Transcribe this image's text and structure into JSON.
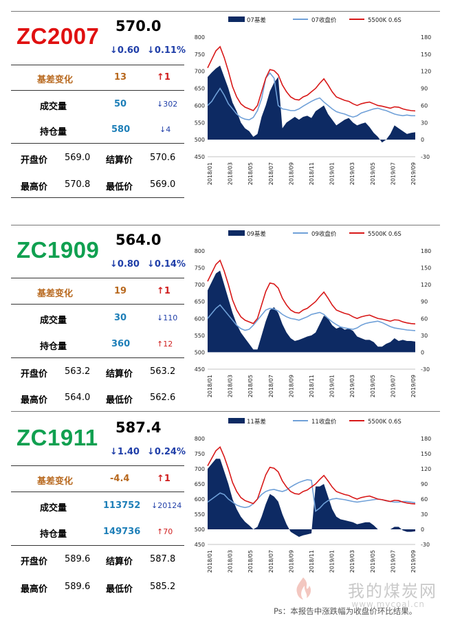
{
  "panels": [
    {
      "code": "ZC2007",
      "code_color": "#e01010",
      "price": "570.0",
      "change": "↓0.60",
      "change_pct": "↓0.11%",
      "basis_change": {
        "label": "基差变化",
        "value": "13",
        "arrow": "↑1"
      },
      "volume": {
        "label": "成交量",
        "value": "50",
        "arrow": "↓302",
        "dir": "down"
      },
      "open_interest": {
        "label": "持仓量",
        "value": "580",
        "arrow": "↓4",
        "dir": "down"
      },
      "open": {
        "label": "开盘价",
        "value": "569.0"
      },
      "settle": {
        "label": "结算价",
        "value": "570.6"
      },
      "high": {
        "label": "最高价",
        "value": "570.8"
      },
      "low": {
        "label": "最低价",
        "value": "569.0"
      }
    },
    {
      "code": "ZC1909",
      "code_color": "#10a050",
      "price": "564.0",
      "change": "↓0.80",
      "change_pct": "↓0.14%",
      "basis_change": {
        "label": "基差变化",
        "value": "19",
        "arrow": "↑1"
      },
      "volume": {
        "label": "成交量",
        "value": "30",
        "arrow": "↓110",
        "dir": "down"
      },
      "open_interest": {
        "label": "持仓量",
        "value": "360",
        "arrow": "↑12",
        "dir": "up"
      },
      "open": {
        "label": "开盘价",
        "value": "563.2"
      },
      "settle": {
        "label": "结算价",
        "value": "563.2"
      },
      "high": {
        "label": "最高价",
        "value": "564.0"
      },
      "low": {
        "label": "最低价",
        "value": "562.6"
      }
    },
    {
      "code": "ZC1911",
      "code_color": "#10a050",
      "price": "587.4",
      "change": "↓1.40",
      "change_pct": "↓0.24%",
      "basis_change": {
        "label": "基差变化",
        "value": "-4.4",
        "arrow": "↑1"
      },
      "volume": {
        "label": "成交量",
        "value": "113752",
        "arrow": "↓20124",
        "dir": "down"
      },
      "open_interest": {
        "label": "持仓量",
        "value": "149736",
        "arrow": "↑70",
        "dir": "up"
      },
      "open": {
        "label": "开盘价",
        "value": "589.6"
      },
      "settle": {
        "label": "结算价",
        "value": "587.8"
      },
      "high": {
        "label": "最高价",
        "value": "589.6"
      },
      "low": {
        "label": "最低价",
        "value": "585.2"
      }
    }
  ],
  "chart_data": [
    {
      "type": "area",
      "legend": [
        "07基差",
        "07收盘价",
        "5500K 0.6S"
      ],
      "legend_position": "top",
      "colors": {
        "basis": "#0d2a63",
        "close": "#6fa0d8",
        "spot": "#d81818"
      },
      "x_ticks": [
        "2018/01",
        "2018/03",
        "2018/05",
        "2018/07",
        "2018/09",
        "2018/11",
        "2019/01",
        "2019/03",
        "2019/05",
        "2019/07",
        "2019/09"
      ],
      "y_left": {
        "min": 450,
        "max": 800,
        "ticks": [
          450,
          500,
          550,
          600,
          650,
          700,
          750,
          800
        ]
      },
      "y_right": {
        "min": -30,
        "max": 180,
        "ticks": [
          -30,
          0,
          30,
          60,
          90,
          120,
          150,
          180
        ]
      },
      "series": [
        {
          "name": "5500K 0.6S",
          "axis": "left",
          "values": [
            710,
            735,
            760,
            772,
            740,
            700,
            655,
            625,
            605,
            595,
            590,
            585,
            600,
            640,
            680,
            705,
            702,
            690,
            660,
            640,
            625,
            618,
            616,
            625,
            630,
            640,
            650,
            665,
            678,
            660,
            640,
            625,
            620,
            615,
            612,
            605,
            600,
            605,
            608,
            610,
            605,
            600,
            598,
            595,
            592,
            596,
            595,
            590,
            587,
            585,
            584
          ]
        },
        {
          "name": "07收盘价",
          "axis": "left",
          "values": [
            600,
            612,
            632,
            650,
            630,
            605,
            590,
            575,
            565,
            560,
            558,
            565,
            585,
            620,
            680,
            695,
            680,
            600,
            590,
            588,
            585,
            585,
            590,
            598,
            605,
            612,
            618,
            622,
            610,
            600,
            590,
            582,
            578,
            575,
            570,
            566,
            570,
            578,
            582,
            586,
            590,
            592,
            588,
            585,
            580,
            575,
            572,
            570,
            572,
            570,
            570
          ]
        },
        {
          "name": "07基差",
          "axis": "right",
          "values": [
            110,
            118,
            125,
            130,
            110,
            90,
            65,
            50,
            30,
            20,
            15,
            5,
            10,
            40,
            60,
            85,
            100,
            110,
            20,
            30,
            35,
            40,
            35,
            40,
            42,
            38,
            50,
            55,
            60,
            45,
            35,
            25,
            30,
            35,
            38,
            30,
            25,
            28,
            30,
            22,
            12,
            5,
            -5,
            0,
            10,
            25,
            20,
            15,
            10,
            12,
            13
          ]
        }
      ]
    },
    {
      "type": "area",
      "legend": [
        "09基差",
        "09收盘价",
        "5500K 0.6S"
      ],
      "legend_position": "top",
      "colors": {
        "basis": "#0d2a63",
        "close": "#6fa0d8",
        "spot": "#d81818"
      },
      "x_ticks": [
        "2018/01",
        "2018/03",
        "2018/05",
        "2018/07",
        "2018/09",
        "2018/11",
        "2019/01",
        "2019/03",
        "2019/05",
        "2019/07",
        "2019/09"
      ],
      "y_left": {
        "min": 450,
        "max": 800,
        "ticks": [
          450,
          500,
          550,
          600,
          650,
          700,
          750,
          800
        ]
      },
      "y_right": {
        "min": -30,
        "max": 180,
        "ticks": [
          -30,
          0,
          30,
          60,
          90,
          120,
          150,
          180
        ]
      },
      "series": [
        {
          "name": "5500K 0.6S",
          "axis": "left",
          "values": [
            710,
            735,
            760,
            772,
            740,
            700,
            655,
            625,
            605,
            595,
            590,
            585,
            600,
            640,
            680,
            705,
            702,
            690,
            660,
            640,
            625,
            618,
            616,
            625,
            630,
            640,
            650,
            665,
            678,
            660,
            640,
            625,
            620,
            615,
            612,
            605,
            600,
            605,
            608,
            610,
            605,
            600,
            598,
            595,
            592,
            596,
            595,
            590,
            587,
            585,
            584
          ]
        },
        {
          "name": "09收盘价",
          "axis": "left",
          "values": [
            600,
            615,
            630,
            640,
            625,
            610,
            595,
            580,
            570,
            565,
            568,
            580,
            595,
            610,
            625,
            630,
            628,
            622,
            612,
            605,
            600,
            598,
            595,
            600,
            605,
            612,
            615,
            618,
            612,
            600,
            590,
            582,
            575,
            572,
            570,
            568,
            572,
            580,
            585,
            588,
            590,
            592,
            588,
            582,
            576,
            572,
            570,
            568,
            566,
            565,
            564
          ]
        },
        {
          "name": "09基差",
          "axis": "right",
          "values": [
            110,
            125,
            140,
            145,
            120,
            95,
            70,
            50,
            35,
            25,
            15,
            5,
            5,
            30,
            55,
            75,
            80,
            70,
            50,
            35,
            25,
            20,
            22,
            25,
            28,
            30,
            35,
            50,
            65,
            60,
            48,
            42,
            45,
            40,
            42,
            38,
            28,
            25,
            22,
            22,
            18,
            10,
            10,
            15,
            18,
            25,
            20,
            22,
            20,
            20,
            19
          ]
        }
      ]
    },
    {
      "type": "area",
      "legend": [
        "11基差",
        "11收盘价",
        "5500K 0.6S"
      ],
      "legend_position": "top",
      "colors": {
        "basis": "#0d2a63",
        "close": "#6fa0d8",
        "spot": "#d81818"
      },
      "x_ticks": [
        "2018/01",
        "2018/03",
        "2018/05",
        "2018/07",
        "2018/09",
        "2018/11",
        "2019/01",
        "2019/03",
        "2019/05",
        "2019/07",
        "2019/09"
      ],
      "y_left": {
        "min": 450,
        "max": 800,
        "ticks": [
          450,
          500,
          550,
          600,
          650,
          700,
          750,
          800
        ]
      },
      "y_right": {
        "min": -30,
        "max": 180,
        "ticks": [
          -30,
          0,
          30,
          60,
          90,
          120,
          150,
          180
        ]
      },
      "series": [
        {
          "name": "5500K 0.6S",
          "axis": "left",
          "values": [
            710,
            735,
            760,
            772,
            740,
            700,
            655,
            625,
            605,
            595,
            590,
            585,
            600,
            640,
            680,
            705,
            702,
            690,
            660,
            640,
            625,
            618,
            616,
            625,
            630,
            640,
            650,
            665,
            678,
            660,
            640,
            625,
            620,
            615,
            612,
            605,
            600,
            605,
            608,
            610,
            605,
            600,
            598,
            595,
            592,
            596,
            595,
            590,
            587,
            585,
            584
          ]
        },
        {
          "name": "11收盘价",
          "axis": "left",
          "values": [
            590,
            600,
            610,
            620,
            615,
            600,
            590,
            580,
            575,
            572,
            575,
            585,
            600,
            615,
            625,
            630,
            632,
            628,
            625,
            630,
            640,
            648,
            655,
            660,
            664,
            662,
            560,
            570,
            585,
            595,
            600,
            602,
            600,
            598,
            595,
            592,
            590,
            592,
            594,
            596,
            598,
            600,
            598,
            594,
            592,
            590,
            590,
            592,
            592,
            590,
            588
          ]
        },
        {
          "name": "11基差",
          "axis": "right",
          "values": [
            120,
            130,
            140,
            140,
            115,
            90,
            60,
            40,
            25,
            15,
            8,
            0,
            5,
            25,
            50,
            70,
            65,
            55,
            30,
            10,
            -5,
            -10,
            -15,
            -12,
            -10,
            -8,
            85,
            85,
            90,
            65,
            40,
            25,
            20,
            18,
            16,
            14,
            10,
            12,
            14,
            14,
            8,
            0,
            0,
            0,
            0,
            5,
            5,
            -2,
            -5,
            -5,
            -4
          ]
        }
      ]
    }
  ],
  "watermark": {
    "text": "我的煤炭网",
    "url_text": "www.mycoal.cn"
  },
  "footnote": "Ps：本报告中涨跌幅为收盘价环比结果。"
}
